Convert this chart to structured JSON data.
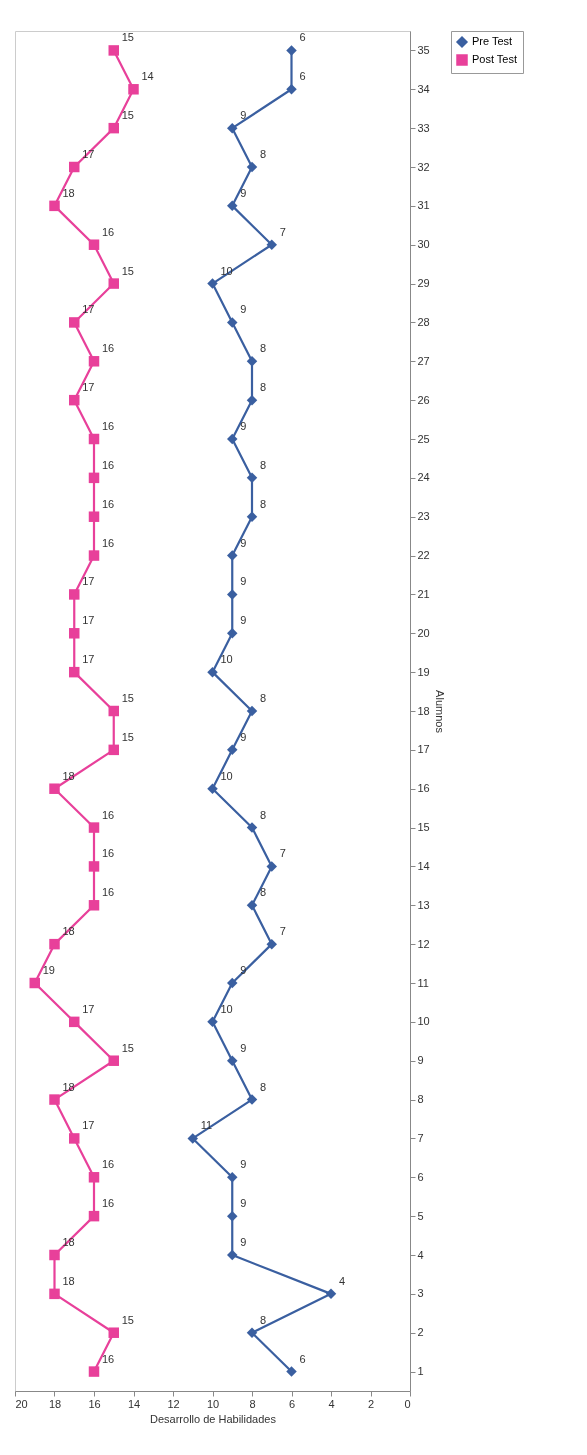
{
  "chart_data": {
    "type": "line",
    "orientation": "horizontal",
    "xlabel": "Desarrollo de Habilidades",
    "ylabel": "Alumnos",
    "categories": [
      "35",
      "34",
      "33",
      "32",
      "31",
      "30",
      "29",
      "28",
      "27",
      "26",
      "25",
      "24",
      "23",
      "22",
      "21",
      "20",
      "19",
      "18",
      "17",
      "16",
      "15",
      "14",
      "13",
      "12",
      "11",
      "10",
      "9",
      "8",
      "7",
      "6",
      "5",
      "4",
      "3",
      "2",
      "1"
    ],
    "series": [
      {
        "name": "Pre Test",
        "color": "#3a5fa0",
        "marker": "diamond",
        "values": [
          6,
          6,
          9,
          8,
          9,
          7,
          10,
          9,
          8,
          8,
          9,
          8,
          8,
          9,
          9,
          9,
          10,
          8,
          9,
          10,
          8,
          7,
          8,
          7,
          9,
          10,
          9,
          8,
          11,
          9,
          9,
          9,
          4,
          8,
          6
        ]
      },
      {
        "name": "Post Test",
        "color": "#e8409a",
        "marker": "square",
        "values": [
          15,
          14,
          15,
          17,
          18,
          16,
          15,
          17,
          16,
          17,
          16,
          16,
          16,
          16,
          17,
          17,
          17,
          15,
          15,
          18,
          16,
          16,
          16,
          18,
          19,
          17,
          15,
          18,
          17,
          16,
          16,
          18,
          18,
          15,
          16
        ]
      }
    ],
    "xlim": [
      20,
      0
    ],
    "xticks": [
      0,
      2,
      4,
      6,
      8,
      10,
      12,
      14,
      16,
      18,
      20
    ],
    "grid": false,
    "legend": "right",
    "data_labels": true
  }
}
